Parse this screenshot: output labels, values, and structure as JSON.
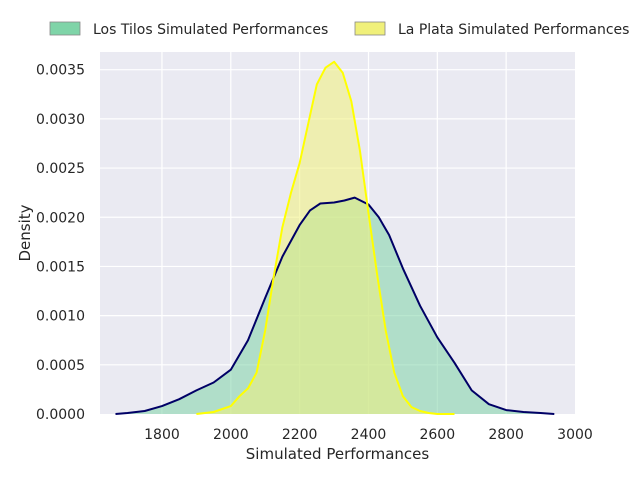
{
  "chart_data": {
    "type": "area",
    "xlabel": "Simulated Performances",
    "ylabel": "Density",
    "xlim": [
      1620,
      3000
    ],
    "ylim": [
      0,
      0.00368
    ],
    "x_ticks": [
      1800,
      2000,
      2200,
      2400,
      2600,
      2800,
      3000
    ],
    "x_tick_labels": [
      "1800",
      "2000",
      "2200",
      "2400",
      "2600",
      "2800",
      "3000"
    ],
    "y_ticks": [
      0,
      0.0005,
      0.001,
      0.0015,
      0.002,
      0.0025,
      0.003,
      0.0035
    ],
    "y_tick_labels": [
      "0.0000",
      "0.0005",
      "0.0010",
      "0.0015",
      "0.0020",
      "0.0025",
      "0.0030",
      "0.0035"
    ],
    "grid": true,
    "legend_position": "top",
    "background_color": "#eaeaf2",
    "series": [
      {
        "name": "Los Tilos Simulated Performances",
        "fill_color": "#7fd4a8",
        "line_color": "#000066",
        "x": [
          1665,
          1700,
          1750,
          1800,
          1850,
          1900,
          1950,
          2000,
          2050,
          2100,
          2150,
          2200,
          2230,
          2260,
          2300,
          2330,
          2360,
          2400,
          2430,
          2460,
          2500,
          2550,
          2600,
          2650,
          2700,
          2750,
          2800,
          2850,
          2900,
          2940
        ],
        "y": [
          0.0,
          1e-05,
          3e-05,
          8e-05,
          0.00015,
          0.00024,
          0.00032,
          0.00045,
          0.00075,
          0.00118,
          0.0016,
          0.00192,
          0.00207,
          0.00214,
          0.00215,
          0.00217,
          0.0022,
          0.00213,
          0.002,
          0.00182,
          0.00148,
          0.0011,
          0.00078,
          0.00052,
          0.00024,
          0.0001,
          4e-05,
          2e-05,
          1e-05,
          0.0
        ]
      },
      {
        "name": "La Plata Simulated Performances",
        "fill_color": "#f0f07a",
        "line_color": "#ffff00",
        "x": [
          1900,
          1950,
          2000,
          2025,
          2050,
          2075,
          2100,
          2125,
          2150,
          2175,
          2200,
          2225,
          2250,
          2275,
          2300,
          2325,
          2350,
          2375,
          2400,
          2425,
          2450,
          2475,
          2500,
          2525,
          2550,
          2575,
          2600,
          2625,
          2650
        ],
        "y": [
          0.0,
          2e-05,
          8e-05,
          0.00018,
          0.00026,
          0.00042,
          0.00085,
          0.0014,
          0.0019,
          0.00225,
          0.00255,
          0.00295,
          0.00335,
          0.00352,
          0.00358,
          0.00347,
          0.00318,
          0.00268,
          0.00204,
          0.00142,
          0.00085,
          0.00042,
          0.00018,
          7e-05,
          3e-05,
          1e-05,
          0.0,
          0.0,
          0.0
        ]
      }
    ]
  }
}
